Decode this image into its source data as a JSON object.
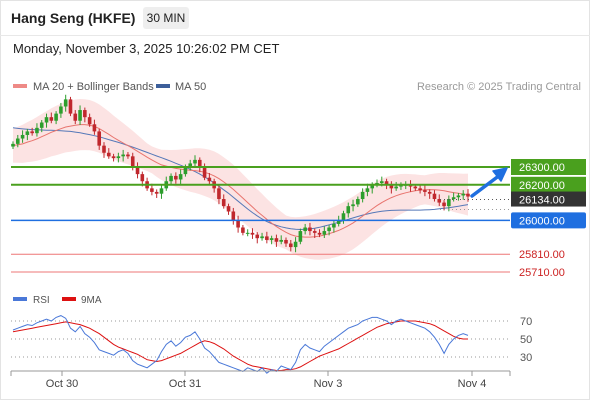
{
  "header": {
    "title": "Hang Seng (HKFE)",
    "timeframe": "30 MIN",
    "datetime": "Monday, November 3, 2025 10:26:02 PM CET"
  },
  "legend": {
    "ma20_label": "MA 20 + Bollinger Bands",
    "ma50_label": "MA 50",
    "copyright": "Research © 2025 Trading Central",
    "rsi_label": "RSI",
    "rsi_ma_label": "9MA"
  },
  "colors": {
    "up": "#2d9e2d",
    "down": "#c0282d",
    "ma20": "#e8746e",
    "ma50": "#5578b8",
    "band": "#fbdada",
    "resistance": "#4aa01e",
    "support": "#1f6fe0",
    "target": "#ee7777",
    "current": "#333333",
    "rsi": "#4a78d8",
    "rsi_ma": "#dd1111"
  },
  "chart_data": {
    "type": "candlestick",
    "timeframe": "30 MIN",
    "x_tick_labels": [
      "Oct 30",
      "Oct 31",
      "Nov 3",
      "Nov 4"
    ],
    "price_levels": {
      "resistance": [
        26300.0,
        26200.0
      ],
      "current": 26134.0,
      "pivot": 26000.0,
      "supports": [
        25810.0,
        25710.0
      ]
    },
    "series": [
      {
        "name": "MA 20 + Bollinger Bands"
      },
      {
        "name": "MA 50"
      }
    ],
    "close": [
      26430,
      26460,
      26480,
      26500,
      26490,
      26520,
      26550,
      26580,
      26560,
      26600,
      26640,
      26680,
      26600,
      26560,
      26620,
      26580,
      26540,
      26500,
      26420,
      26380,
      26360,
      26350,
      26360,
      26370,
      26360,
      26300,
      26260,
      26220,
      26180,
      26160,
      26150,
      26180,
      26220,
      26250,
      26230,
      26260,
      26300,
      26320,
      26340,
      26300,
      26240,
      26220,
      26180,
      26120,
      26080,
      26050,
      26000,
      25960,
      25930,
      25930,
      25920,
      25900,
      25910,
      25890,
      25900,
      25880,
      25890,
      25870,
      25850,
      25880,
      25940,
      25960,
      25940,
      25930,
      25920,
      25940,
      25960,
      25980,
      26000,
      26040,
      26080,
      26090,
      26120,
      26160,
      26180,
      26200,
      26210,
      26220,
      26200,
      26180,
      26190,
      26200,
      26200,
      26190,
      26180,
      26170,
      26160,
      26150,
      26120,
      26100,
      26080,
      26120,
      26130,
      26140,
      26150,
      26134
    ],
    "ma20": [
      26420,
      26425,
      26430,
      26440,
      26448,
      26458,
      26470,
      26482,
      26495,
      26505,
      26515,
      26525,
      26530,
      26535,
      26538,
      26538,
      26535,
      26528,
      26516,
      26500,
      26484,
      26466,
      26450,
      26435,
      26420,
      26405,
      26388,
      26372,
      26355,
      26340,
      26325,
      26312,
      26305,
      26298,
      26292,
      26288,
      26285,
      26282,
      26280,
      26276,
      26270,
      26262,
      26250,
      26235,
      26216,
      26196,
      26174,
      26150,
      26125,
      26100,
      26075,
      26050,
      26028,
      26006,
      25985,
      25965,
      25948,
      25933,
      25920,
      25912,
      25908,
      25906,
      25906,
      25908,
      25912,
      25918,
      25925,
      25934,
      25944,
      25956,
      25970,
      25986,
      26004,
      26024,
      26044,
      26064,
      26083,
      26100,
      26115,
      26128,
      26139,
      26148,
      26155,
      26161,
      26166,
      26170,
      26172,
      26173,
      26172,
      26170,
      26166,
      26161,
      26156,
      26152,
      26148,
      26145
    ],
    "ma50": [
      26520,
      26517,
      26514,
      26512,
      26510,
      26509,
      26508,
      26507,
      26506,
      26505,
      26504,
      26502,
      26500,
      26496,
      26492,
      26487,
      26482,
      26476,
      26470,
      26462,
      26454,
      26446,
      26438,
      26430,
      26421,
      26412,
      26402,
      26392,
      26382,
      26372,
      26362,
      26352,
      26342,
      26332,
      26321,
      26310,
      26299,
      26287,
      26274,
      26260,
      26244,
      26228,
      26210,
      26192,
      26172,
      26152,
      26130,
      26108,
      26086,
      26064,
      26044,
      26025,
      26008,
      25994,
      25982,
      25972,
      25964,
      25958,
      25953,
      25950,
      25949,
      25950,
      25952,
      25956,
      25961,
      25968,
      25975,
      25982,
      25990,
      25998,
      26006,
      26014,
      26022,
      26030,
      26036,
      26042,
      26047,
      26051,
      26054,
      26056,
      26057,
      26058,
      26058,
      26058,
      26058,
      26058,
      26059,
      26060,
      26062,
      26065,
      26068,
      26071,
      26075,
      26079,
      26084,
      26089
    ],
    "rsi_axis_ticks": [
      70,
      50,
      30
    ],
    "rsi": [
      60,
      62,
      64,
      66,
      65,
      68,
      70,
      72,
      70,
      74,
      76,
      73,
      62,
      58,
      64,
      56,
      52,
      46,
      38,
      36,
      34,
      32,
      36,
      38,
      34,
      26,
      22,
      20,
      18,
      22,
      26,
      36,
      44,
      48,
      42,
      46,
      52,
      54,
      58,
      50,
      40,
      36,
      30,
      24,
      22,
      20,
      18,
      16,
      14,
      18,
      16,
      14,
      18,
      12,
      16,
      14,
      20,
      18,
      16,
      24,
      38,
      44,
      40,
      38,
      36,
      42,
      46,
      50,
      54,
      58,
      62,
      64,
      66,
      70,
      72,
      74,
      74,
      72,
      70,
      66,
      70,
      72,
      70,
      68,
      66,
      64,
      62,
      58,
      52,
      44,
      34,
      44,
      50,
      54,
      56,
      54
    ],
    "rsi_ma": [
      58,
      59,
      60,
      61,
      62,
      63,
      64,
      65,
      66,
      67,
      68,
      69,
      68,
      67,
      66,
      64,
      62,
      59,
      56,
      52,
      48,
      44,
      41,
      39,
      37,
      35,
      33,
      30,
      27,
      26,
      25,
      26,
      28,
      30,
      32,
      34,
      37,
      40,
      43,
      46,
      48,
      47,
      45,
      42,
      39,
      35,
      31,
      28,
      25,
      22,
      20,
      19,
      18,
      17,
      16,
      15,
      15,
      16,
      16,
      17,
      19,
      22,
      25,
      28,
      31,
      33,
      35,
      37,
      39,
      42,
      45,
      48,
      51,
      54,
      57,
      60,
      63,
      65,
      67,
      68,
      69,
      70,
      70,
      70,
      70,
      69,
      68,
      67,
      65,
      62,
      59,
      56,
      53,
      51,
      50,
      50
    ]
  }
}
